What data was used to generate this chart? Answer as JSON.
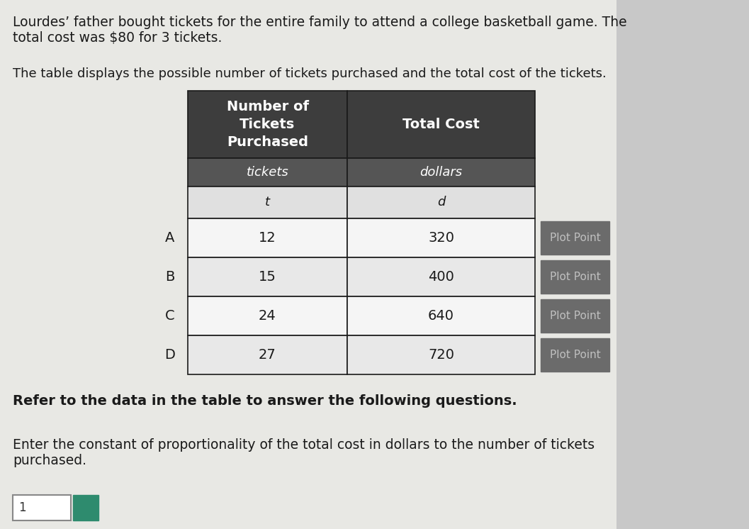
{
  "title_text": "Lourdes’ father bought tickets for the entire family to attend a college basketball game. The\ntotal cost was $80 for 3 tickets.",
  "subtitle_text": "The table displays the possible number of tickets purchased and the total cost of the tickets.",
  "refer_text": "Refer to the data in the table to answer the following questions.",
  "enter_text": "Enter the constant of proportionality of the total cost in dollars to the number of tickets\npurchased.",
  "col1_header": "Number of\nTickets\nPurchased",
  "col2_header": "Total Cost",
  "col1_sub": "tickets",
  "col2_sub": "dollars",
  "col1_var": "t",
  "col2_var": "d",
  "rows": [
    {
      "label": "A",
      "tickets": "12",
      "cost": "320"
    },
    {
      "label": "B",
      "tickets": "15",
      "cost": "400"
    },
    {
      "label": "C",
      "tickets": "24",
      "cost": "640"
    },
    {
      "label": "D",
      "tickets": "27",
      "cost": "720"
    }
  ],
  "header_bg": "#3d3d3d",
  "sub_header_bg": "#555555",
  "var_row_bg": "#e0e0e0",
  "data_row_bg": "#f5f5f5",
  "data_row_alt_bg": "#e8e8e8",
  "plot_btn_bg": "#6b6b6b",
  "plot_btn_text": "Plot Point",
  "plot_btn_text_color": "#c0c0c0",
  "table_border_color": "#1a1a1a",
  "header_text_color": "#ffffff",
  "body_text_color": "#1a1a1a",
  "bg_color": "#c8c8c8",
  "page_bg": "#e8e8e4",
  "input_box_color": "#ffffff",
  "text_color": "#1a1a1a",
  "refer_text_color": "#1a1a1a",
  "answer_input_placeholder": "1",
  "answer_box_color": "#2e8b6e"
}
